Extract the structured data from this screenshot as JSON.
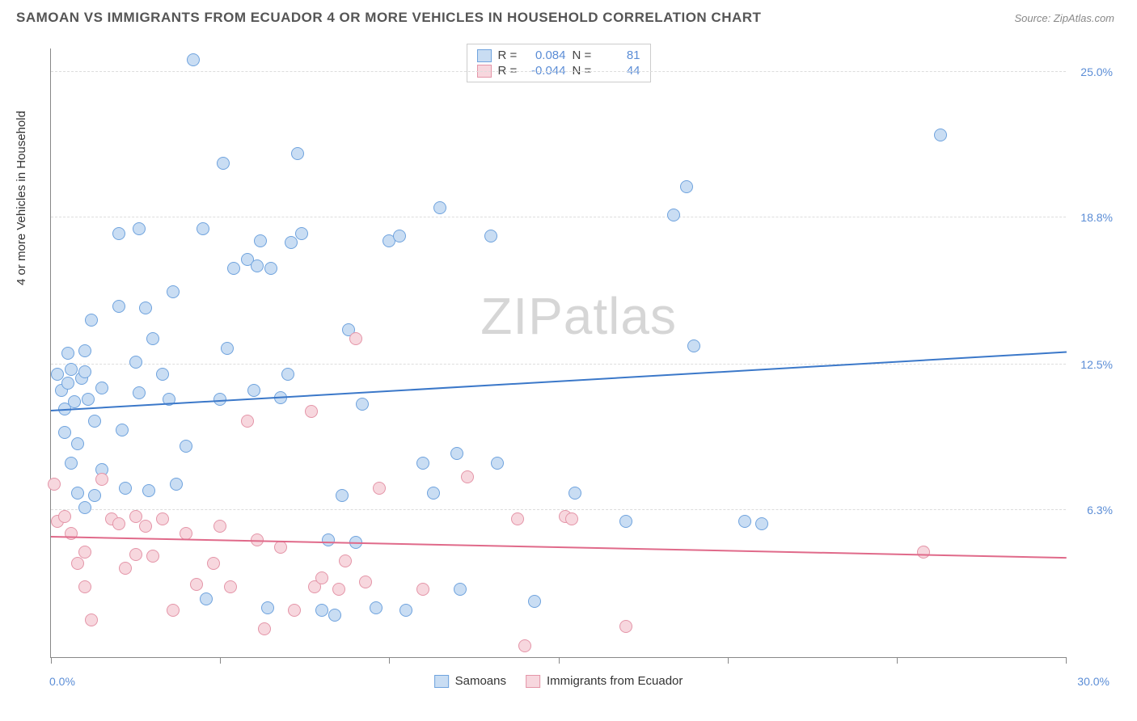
{
  "title": "SAMOAN VS IMMIGRANTS FROM ECUADOR 4 OR MORE VEHICLES IN HOUSEHOLD CORRELATION CHART",
  "source": "Source: ZipAtlas.com",
  "watermark_a": "ZIP",
  "watermark_b": "atlas",
  "chart": {
    "type": "scatter",
    "ylabel": "4 or more Vehicles in Household",
    "xlim": [
      0,
      30
    ],
    "ylim": [
      0,
      26
    ],
    "x_ticks": [
      0,
      5,
      10,
      15,
      20,
      25,
      30
    ],
    "y_gridlines": [
      6.3,
      12.5,
      18.8,
      25.0
    ],
    "y_tick_labels": [
      "6.3%",
      "12.5%",
      "18.8%",
      "25.0%"
    ],
    "x_min_label": "0.0%",
    "x_max_label": "30.0%",
    "background_color": "#ffffff",
    "grid_color": "#dddddd",
    "axis_color": "#888888",
    "tick_label_color": "#5b8dd6",
    "marker_radius": 8,
    "marker_stroke": 1.5,
    "series": [
      {
        "name": "Samoans",
        "fill": "#c9ddf3",
        "stroke": "#6fa3de",
        "R": "0.084",
        "N": "81",
        "trend": {
          "x0": 0,
          "y0": 10.6,
          "x1": 30,
          "y1": 13.1,
          "color": "#3b78c9",
          "width": 2
        },
        "points": [
          [
            0.2,
            12.1
          ],
          [
            0.3,
            11.4
          ],
          [
            0.4,
            10.6
          ],
          [
            0.4,
            9.6
          ],
          [
            0.5,
            13.0
          ],
          [
            0.5,
            11.7
          ],
          [
            0.6,
            8.3
          ],
          [
            0.6,
            12.3
          ],
          [
            0.7,
            10.9
          ],
          [
            0.8,
            9.1
          ],
          [
            0.8,
            7.0
          ],
          [
            0.9,
            11.9
          ],
          [
            1.0,
            6.4
          ],
          [
            1.0,
            13.1
          ],
          [
            1.0,
            12.2
          ],
          [
            1.1,
            11.0
          ],
          [
            1.2,
            14.4
          ],
          [
            1.3,
            6.9
          ],
          [
            1.3,
            10.1
          ],
          [
            1.5,
            11.5
          ],
          [
            1.5,
            8.0
          ],
          [
            2.0,
            18.1
          ],
          [
            2.0,
            15.0
          ],
          [
            2.1,
            9.7
          ],
          [
            2.2,
            7.2
          ],
          [
            2.5,
            12.6
          ],
          [
            2.6,
            11.3
          ],
          [
            2.6,
            18.3
          ],
          [
            2.8,
            14.9
          ],
          [
            2.9,
            7.1
          ],
          [
            3.0,
            13.6
          ],
          [
            3.3,
            12.1
          ],
          [
            3.5,
            11.0
          ],
          [
            3.6,
            15.6
          ],
          [
            3.7,
            7.4
          ],
          [
            4.0,
            9.0
          ],
          [
            4.2,
            25.5
          ],
          [
            4.5,
            18.3
          ],
          [
            4.6,
            2.5
          ],
          [
            5.0,
            11.0
          ],
          [
            5.1,
            21.1
          ],
          [
            5.2,
            13.2
          ],
          [
            5.4,
            16.6
          ],
          [
            5.8,
            17.0
          ],
          [
            6.0,
            11.4
          ],
          [
            6.1,
            16.7
          ],
          [
            6.2,
            17.8
          ],
          [
            6.4,
            2.1
          ],
          [
            6.5,
            16.6
          ],
          [
            6.8,
            11.1
          ],
          [
            7.0,
            12.1
          ],
          [
            7.1,
            17.7
          ],
          [
            7.3,
            21.5
          ],
          [
            7.4,
            18.1
          ],
          [
            8.0,
            2.0
          ],
          [
            8.2,
            5.0
          ],
          [
            8.4,
            1.8
          ],
          [
            8.6,
            6.9
          ],
          [
            8.8,
            14.0
          ],
          [
            9.0,
            4.9
          ],
          [
            9.2,
            10.8
          ],
          [
            9.6,
            2.1
          ],
          [
            10.0,
            17.8
          ],
          [
            10.3,
            18.0
          ],
          [
            10.5,
            2.0
          ],
          [
            11.0,
            8.3
          ],
          [
            11.3,
            7.0
          ],
          [
            11.5,
            19.2
          ],
          [
            12.0,
            8.7
          ],
          [
            12.1,
            2.9
          ],
          [
            13.0,
            18.0
          ],
          [
            13.2,
            8.3
          ],
          [
            14.3,
            2.4
          ],
          [
            15.5,
            7.0
          ],
          [
            17.0,
            5.8
          ],
          [
            18.4,
            18.9
          ],
          [
            18.8,
            20.1
          ],
          [
            19.0,
            13.3
          ],
          [
            20.5,
            5.8
          ],
          [
            21.0,
            5.7
          ],
          [
            26.3,
            22.3
          ]
        ]
      },
      {
        "name": "Immigrants from Ecuador",
        "fill": "#f7d7de",
        "stroke": "#e495a8",
        "R": "-0.044",
        "N": "44",
        "trend": {
          "x0": 0,
          "y0": 5.2,
          "x1": 30,
          "y1": 4.3,
          "color": "#e06a8a",
          "width": 2
        },
        "points": [
          [
            0.1,
            7.4
          ],
          [
            0.2,
            5.8
          ],
          [
            0.4,
            6.0
          ],
          [
            0.6,
            5.3
          ],
          [
            0.8,
            4.0
          ],
          [
            1.0,
            4.5
          ],
          [
            1.0,
            3.0
          ],
          [
            1.2,
            1.6
          ],
          [
            1.5,
            7.6
          ],
          [
            1.8,
            5.9
          ],
          [
            2.0,
            5.7
          ],
          [
            2.2,
            3.8
          ],
          [
            2.5,
            6.0
          ],
          [
            2.5,
            4.4
          ],
          [
            2.8,
            5.6
          ],
          [
            3.0,
            4.3
          ],
          [
            3.3,
            5.9
          ],
          [
            3.6,
            2.0
          ],
          [
            4.0,
            5.3
          ],
          [
            4.3,
            3.1
          ],
          [
            4.8,
            4.0
          ],
          [
            5.0,
            5.6
          ],
          [
            5.3,
            3.0
          ],
          [
            5.8,
            10.1
          ],
          [
            6.1,
            5.0
          ],
          [
            6.3,
            1.2
          ],
          [
            6.8,
            4.7
          ],
          [
            7.2,
            2.0
          ],
          [
            7.7,
            10.5
          ],
          [
            7.8,
            3.0
          ],
          [
            8.0,
            3.4
          ],
          [
            8.5,
            2.9
          ],
          [
            8.7,
            4.1
          ],
          [
            9.0,
            13.6
          ],
          [
            9.3,
            3.2
          ],
          [
            9.7,
            7.2
          ],
          [
            11.0,
            2.9
          ],
          [
            12.3,
            7.7
          ],
          [
            13.8,
            5.9
          ],
          [
            14.0,
            0.5
          ],
          [
            15.2,
            6.0
          ],
          [
            15.4,
            5.9
          ],
          [
            17.0,
            1.3
          ],
          [
            25.8,
            4.5
          ]
        ]
      }
    ]
  },
  "stats_labels": {
    "R": "R =",
    "N": "N ="
  },
  "legend_labels": [
    "Samoans",
    "Immigrants from Ecuador"
  ]
}
